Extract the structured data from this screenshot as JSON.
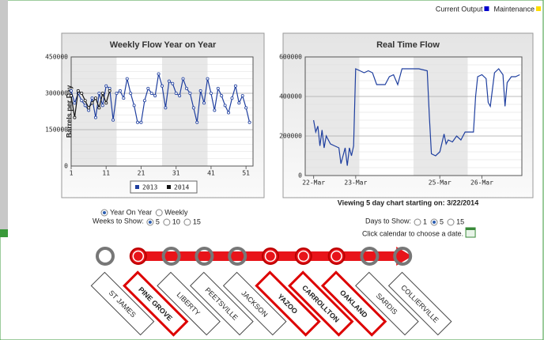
{
  "header": {
    "legend": [
      {
        "label": "Current Output",
        "color": "#0000cc"
      },
      {
        "label": "Maintenance",
        "color": "#ffdd00"
      }
    ]
  },
  "chart_data": [
    {
      "type": "line",
      "title": "Weekly Flow Year on Year",
      "y_label": "Barrels per Day",
      "x": [
        1,
        2,
        3,
        4,
        5,
        6,
        7,
        8,
        9,
        10,
        11,
        12,
        13,
        14,
        15,
        16,
        17,
        18,
        19,
        20,
        21,
        22,
        23,
        24,
        25,
        26,
        27,
        28,
        29,
        30,
        31,
        32,
        33,
        34,
        35,
        36,
        37,
        38,
        39,
        40,
        41,
        42,
        43,
        44,
        45,
        46,
        47,
        48,
        49,
        50,
        51,
        52
      ],
      "series": [
        {
          "name": "2013",
          "color": "#1f3f9f",
          "values": [
            310000,
            260000,
            300000,
            270000,
            250000,
            230000,
            280000,
            200000,
            300000,
            250000,
            330000,
            320000,
            190000,
            300000,
            310000,
            280000,
            360000,
            300000,
            250000,
            180000,
            180000,
            270000,
            320000,
            300000,
            290000,
            380000,
            330000,
            240000,
            350000,
            340000,
            300000,
            290000,
            360000,
            320000,
            300000,
            240000,
            180000,
            310000,
            260000,
            360000,
            300000,
            230000,
            320000,
            290000,
            250000,
            220000,
            280000,
            330000,
            260000,
            290000,
            240000,
            180000
          ]
        },
        {
          "name": "2014",
          "color": "#111111",
          "values": [
            290000,
            200000,
            310000,
            300000,
            270000,
            240000,
            260000,
            280000,
            240000,
            300000,
            260000,
            310000,
            null,
            null,
            null,
            null,
            null,
            null,
            null,
            null,
            null,
            null,
            null,
            null,
            null,
            null,
            null,
            null,
            null,
            null,
            null,
            null,
            null,
            null,
            null,
            null,
            null,
            null,
            null,
            null,
            null,
            null,
            null,
            null,
            null,
            null,
            null,
            null,
            null,
            null,
            null,
            null
          ]
        }
      ],
      "xlim": [
        1,
        53
      ],
      "xticks": [
        1,
        11,
        21,
        31,
        41,
        51
      ],
      "ylim": [
        0,
        450000
      ],
      "yticks": [
        0,
        150000,
        300000,
        450000
      ],
      "grid": true,
      "markers": true,
      "legend": "bottom"
    },
    {
      "type": "line",
      "title": "Real Time Flow",
      "x": [
        22.0,
        22.05,
        22.1,
        22.15,
        22.2,
        22.25,
        22.3,
        22.4,
        22.5,
        22.6,
        22.65,
        22.75,
        22.8,
        22.85,
        22.9,
        22.95,
        23.0,
        23.1,
        23.2,
        23.3,
        23.4,
        23.5,
        23.6,
        23.7,
        23.8,
        23.9,
        24.0,
        24.1,
        24.3,
        24.5,
        24.7,
        24.75,
        24.8,
        24.9,
        25.0,
        25.1,
        25.15,
        25.2,
        25.3,
        25.4,
        25.5,
        25.6,
        25.8,
        25.85,
        25.9,
        26.0,
        26.1,
        26.15,
        26.2,
        26.3,
        26.4,
        26.5,
        26.55,
        26.6,
        26.7,
        26.8,
        26.9
      ],
      "series": [
        {
          "color": "#1f3f9f",
          "values": [
            280000,
            220000,
            250000,
            150000,
            230000,
            140000,
            200000,
            160000,
            150000,
            140000,
            60000,
            140000,
            50000,
            140000,
            100000,
            150000,
            540000,
            530000,
            520000,
            530000,
            520000,
            460000,
            460000,
            460000,
            500000,
            510000,
            460000,
            540000,
            540000,
            540000,
            530000,
            300000,
            110000,
            100000,
            120000,
            210000,
            160000,
            180000,
            170000,
            200000,
            180000,
            220000,
            220000,
            400000,
            500000,
            510000,
            490000,
            370000,
            350000,
            520000,
            540000,
            510000,
            350000,
            470000,
            500000,
            500000,
            510000
          ]
        }
      ],
      "xlim": [
        21.8,
        26.95
      ],
      "xticks": [
        {
          "value": 22,
          "label": "22-Mar"
        },
        {
          "value": 23,
          "label": "23-Mar"
        },
        {
          "value": 25,
          "label": "25-Mar"
        },
        {
          "value": 26,
          "label": "26-Mar"
        }
      ],
      "ylim": [
        0,
        600000
      ],
      "yticks": [
        0,
        200000,
        400000,
        600000
      ],
      "grid": true,
      "markers": false
    }
  ],
  "controls_left": {
    "view_options": [
      {
        "label": "Year On Year",
        "selected": true
      },
      {
        "label": "Weekly",
        "selected": false
      }
    ],
    "weeks_label": "Weeks to Show:",
    "weeks": [
      {
        "label": "5",
        "selected": true
      },
      {
        "label": "10",
        "selected": false
      },
      {
        "label": "15",
        "selected": false
      }
    ]
  },
  "controls_right": {
    "viewing": "Viewing 5 day chart starting on: 3/22/2014",
    "days_label": "Days to Show:",
    "days": [
      {
        "label": "1",
        "selected": false
      },
      {
        "label": "5",
        "selected": true
      },
      {
        "label": "15",
        "selected": false
      }
    ],
    "calendar_hint": "Click calendar to choose a date."
  },
  "stations": [
    {
      "name": "ST JAMES",
      "active": false
    },
    {
      "name": "PINE GROVE",
      "active": true
    },
    {
      "name": "LIBERTY",
      "active": false
    },
    {
      "name": "PEETSVILLE",
      "active": false
    },
    {
      "name": "JACKSON",
      "active": false
    },
    {
      "name": "YAZOO",
      "active": true
    },
    {
      "name": "CARROLLTON",
      "active": true
    },
    {
      "name": "OAKLAND",
      "active": true
    },
    {
      "name": "SARDIS",
      "active": false
    },
    {
      "name": "COLLIERVILLE",
      "active": false
    }
  ]
}
